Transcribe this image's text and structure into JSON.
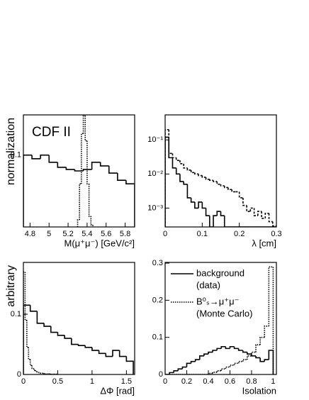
{
  "chart_data": [
    {
      "type": "histogram",
      "title": "CDF II",
      "y_label": "normalization",
      "x_label": "M(μ⁺μ⁻)  [GeV/c²]",
      "xlim": [
        4.73,
        5.9
      ],
      "xticks": [
        4.8,
        5,
        5.2,
        5.4,
        5.6,
        5.8
      ],
      "ylim": [
        0,
        0.156
      ],
      "yticks": [
        0.1
      ],
      "series": [
        {
          "style": "solid",
          "color": "#000000",
          "bins": [
            4.73,
            4.82,
            4.91,
            5.0,
            5.09,
            5.18,
            5.27,
            5.36,
            5.45,
            5.54,
            5.63,
            5.72,
            5.81,
            5.9
          ],
          "counts": [
            0.1,
            0.095,
            0.1,
            0.09,
            0.083,
            0.08,
            0.078,
            0.08,
            0.09,
            0.085,
            0.075,
            0.065,
            0.06
          ]
        },
        {
          "style": "dotted",
          "color": "#000000",
          "bins": [
            5.3,
            5.32,
            5.34,
            5.36,
            5.38,
            5.4,
            5.42,
            5.44,
            5.46
          ],
          "counts": [
            0.01,
            0.06,
            0.13,
            0.155,
            0.12,
            0.06,
            0.015,
            0.003
          ]
        }
      ]
    },
    {
      "type": "histogram",
      "x_label": "λ  [cm]",
      "log_y": true,
      "xlim": [
        0,
        0.3
      ],
      "xticks": [
        0,
        0.1,
        0.2,
        0.3
      ],
      "ylim": [
        0.00028,
        0.54
      ],
      "yticks": [
        {
          "value": 0.1,
          "label": "10⁻¹"
        },
        {
          "value": 0.01,
          "label": "10⁻²"
        },
        {
          "value": 0.001,
          "label": "10⁻³"
        }
      ],
      "series": [
        {
          "style": "solid",
          "color": "#000000",
          "bins": [
            0,
            0.01,
            0.02,
            0.03,
            0.04,
            0.05,
            0.06,
            0.07,
            0.08,
            0.09,
            0.1,
            0.11,
            0.12,
            0.13,
            0.14,
            0.15,
            0.16,
            0.17,
            0.18,
            0.19,
            0.2,
            0.21,
            0.22,
            0.23,
            0.24,
            0.25,
            0.26,
            0.27,
            0.28,
            0.29,
            0.3
          ],
          "counts": [
            0.12,
            0.03,
            0.015,
            0.01,
            0.006,
            0.005,
            0.002,
            0.0015,
            0.001,
            0.0015,
            0.001,
            0.0006,
            0,
            0.0006,
            0.0008,
            0.0006,
            0,
            0,
            0,
            0,
            0,
            0,
            0,
            0,
            0,
            0,
            0,
            0,
            0,
            0
          ]
        },
        {
          "style": "dashed",
          "color": "#000000",
          "bins": [
            0,
            0.01,
            0.02,
            0.03,
            0.04,
            0.05,
            0.06,
            0.07,
            0.08,
            0.09,
            0.1,
            0.11,
            0.12,
            0.13,
            0.14,
            0.15,
            0.16,
            0.17,
            0.18,
            0.19,
            0.2,
            0.21,
            0.22,
            0.23,
            0.24,
            0.25,
            0.26,
            0.27,
            0.28,
            0.29,
            0.3
          ],
          "counts": [
            0.2,
            0.04,
            0.03,
            0.025,
            0.02,
            0.015,
            0.013,
            0.011,
            0.01,
            0.009,
            0.008,
            0.007,
            0.0065,
            0.006,
            0.005,
            0.0045,
            0.004,
            0.0035,
            0.003,
            0.003,
            0.002,
            0.0012,
            0.0008,
            0.001,
            0.0006,
            0.0008,
            0.0005,
            0.0007,
            0.0004,
            0.0003
          ]
        }
      ]
    },
    {
      "type": "histogram",
      "y_label": "arbitrary",
      "x_label": "ΔΦ  [rad]",
      "xlim": [
        0,
        1.62
      ],
      "xticks": [
        0,
        0.5,
        1,
        1.5
      ],
      "ylim": [
        0,
        0.186
      ],
      "yticks": [
        0,
        0.1
      ],
      "series": [
        {
          "style": "solid",
          "color": "#000000",
          "bins": [
            0,
            0.1,
            0.2,
            0.3,
            0.4,
            0.5,
            0.6,
            0.7,
            0.8,
            0.9,
            1.0,
            1.1,
            1.2,
            1.3,
            1.4,
            1.5,
            1.6
          ],
          "counts": [
            0.115,
            0.105,
            0.085,
            0.08,
            0.07,
            0.065,
            0.06,
            0.05,
            0.048,
            0.045,
            0.04,
            0.035,
            0.03,
            0.04,
            0.03,
            0.022
          ]
        },
        {
          "style": "dotted",
          "color": "#000000",
          "bins": [
            0,
            0.025,
            0.05,
            0.075,
            0.1,
            0.125,
            0.15,
            0.175,
            0.2,
            0.225,
            0.25,
            0.275,
            0.3,
            0.325,
            0.35,
            0.375,
            0.4,
            0.425,
            0.45,
            0.475,
            0.5
          ],
          "counts": [
            0.17,
            0.09,
            0.045,
            0.025,
            0.015,
            0.01,
            0.007,
            0.005,
            0.004,
            0.003,
            0.002,
            0.002,
            0.0015,
            0.001,
            0.001,
            0.001,
            0.0005,
            0.0005,
            0.0005,
            0.0005
          ]
        }
      ]
    },
    {
      "type": "histogram",
      "x_label": "Isolation",
      "legend": "upper left",
      "xlim": [
        0,
        1.03
      ],
      "xticks": [
        0,
        0.2,
        0.4,
        0.6,
        0.8,
        1
      ],
      "ylim": [
        0,
        0.302
      ],
      "yticks": [
        0,
        0.1,
        0.2,
        0.3
      ],
      "series": [
        {
          "name": "background",
          "note": "(data)",
          "style": "solid",
          "color": "#000000",
          "bins": [
            0,
            0.04,
            0.08,
            0.12,
            0.16,
            0.2,
            0.24,
            0.28,
            0.32,
            0.36,
            0.4,
            0.44,
            0.48,
            0.52,
            0.56,
            0.6,
            0.64,
            0.68,
            0.72,
            0.76,
            0.8,
            0.84,
            0.88,
            0.92,
            0.96,
            1.0
          ],
          "counts": [
            0,
            0.005,
            0.01,
            0.015,
            0.02,
            0.03,
            0.035,
            0.04,
            0.05,
            0.055,
            0.06,
            0.065,
            0.07,
            0.075,
            0.07,
            0.075,
            0.07,
            0.065,
            0.06,
            0.055,
            0.05,
            0.045,
            0.035,
            0.04,
            0.065
          ]
        },
        {
          "name": "B⁰ₛ→μ⁺μ⁻",
          "note": "(Monte Carlo)",
          "style": "dotted",
          "color": "#000000",
          "bins": [
            0,
            0.04,
            0.08,
            0.12,
            0.16,
            0.2,
            0.24,
            0.28,
            0.32,
            0.36,
            0.4,
            0.44,
            0.48,
            0.52,
            0.56,
            0.6,
            0.64,
            0.68,
            0.72,
            0.76,
            0.8,
            0.84,
            0.88,
            0.92,
            0.96,
            1.0
          ],
          "counts": [
            0,
            0,
            0,
            0,
            0,
            0,
            0,
            0,
            0,
            0,
            0.003,
            0.006,
            0.01,
            0.015,
            0.02,
            0.025,
            0.03,
            0.035,
            0.04,
            0.05,
            0.06,
            0.08,
            0.1,
            0.13,
            0.29
          ]
        }
      ]
    }
  ]
}
